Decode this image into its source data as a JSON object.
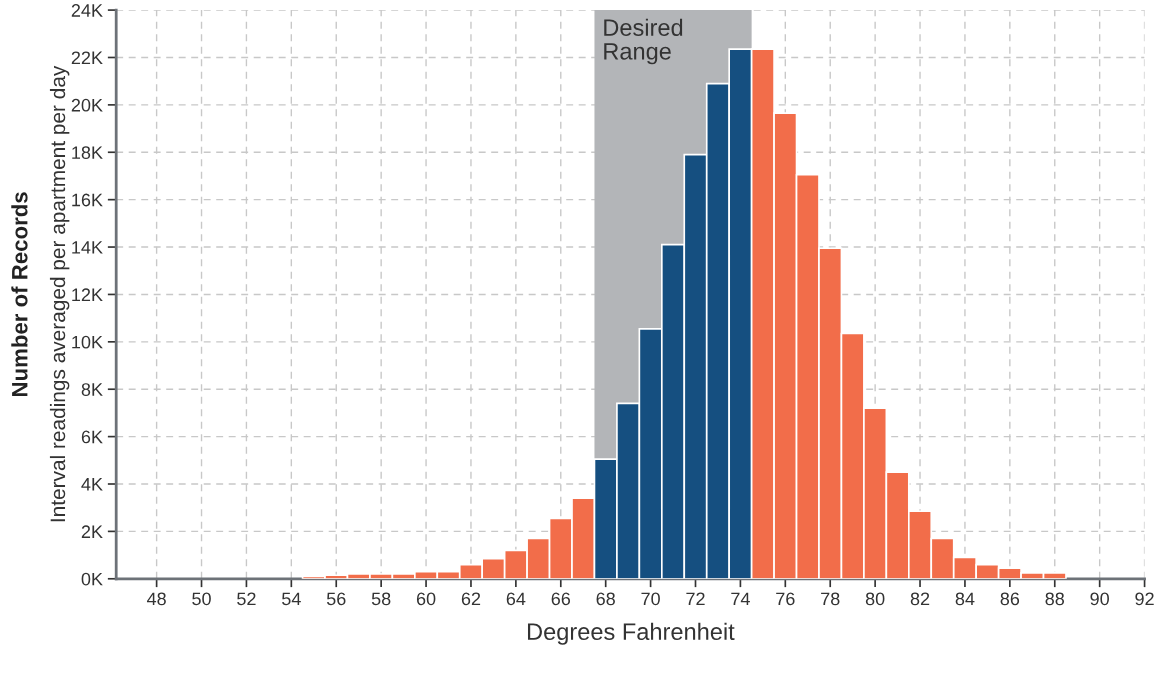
{
  "chart_data": {
    "type": "histogram",
    "xlabel": "Degrees Fahrenheit",
    "ylabel": "Number of Records",
    "annotations": [
      "Interval readings averaged per apartment per day"
    ],
    "bins": [
      54.5,
      55.5,
      56.5,
      57.5,
      58.5,
      59.5,
      60.5,
      61.5,
      62.5,
      63.5,
      64.5,
      65.5,
      66.5,
      67.5,
      68.5,
      69.5,
      70.5,
      71.5,
      72.5,
      73.5,
      74.5,
      75.5,
      76.5,
      77.5,
      78.5,
      79.5,
      80.5,
      81.5,
      82.5,
      83.5,
      84.5,
      85.5,
      86.5,
      87.5,
      88.5
    ],
    "values": [
      100,
      150,
      200,
      200,
      200,
      300,
      300,
      600,
      850,
      1200,
      1700,
      2550,
      3400,
      5050,
      7400,
      10550,
      14100,
      17900,
      20900,
      22350,
      22350,
      19650,
      17050,
      13950,
      10350,
      7200,
      4500,
      2850,
      1700,
      900,
      600,
      450,
      250,
      250
    ],
    "colors": [
      "#f26d4a",
      "#f26d4a",
      "#f26d4a",
      "#f26d4a",
      "#f26d4a",
      "#f26d4a",
      "#f26d4a",
      "#f26d4a",
      "#f26d4a",
      "#f26d4a",
      "#f26d4a",
      "#f26d4a",
      "#f26d4a",
      "#154f80",
      "#154f80",
      "#154f80",
      "#154f80",
      "#154f80",
      "#154f80",
      "#154f80",
      "#f26d4a",
      "#f26d4a",
      "#f26d4a",
      "#f26d4a",
      "#f26d4a",
      "#f26d4a",
      "#f26d4a",
      "#f26d4a",
      "#f26d4a",
      "#f26d4a",
      "#f26d4a",
      "#f26d4a",
      "#f26d4a",
      "#f26d4a"
    ],
    "bands": [
      {
        "axis": "x",
        "from": 67.5,
        "to": 74.5,
        "label": "Desired Range",
        "color": "#b3b5b8"
      }
    ],
    "xlim": [
      46.2,
      92
    ],
    "xticks": [
      48,
      50,
      52,
      54,
      56,
      58,
      60,
      62,
      64,
      66,
      68,
      70,
      72,
      74,
      76,
      78,
      80,
      82,
      84,
      86,
      88,
      90,
      92
    ],
    "ylim": [
      0,
      24000
    ],
    "yticks": [
      {
        "value": 0,
        "label": "0K"
      },
      {
        "value": 2000,
        "label": "2K"
      },
      {
        "value": 4000,
        "label": "4K"
      },
      {
        "value": 6000,
        "label": "6K"
      },
      {
        "value": 8000,
        "label": "8K"
      },
      {
        "value": 10000,
        "label": "10K"
      },
      {
        "value": 12000,
        "label": "12K"
      },
      {
        "value": 14000,
        "label": "14K"
      },
      {
        "value": 16000,
        "label": "16K"
      },
      {
        "value": 18000,
        "label": "18K"
      },
      {
        "value": 20000,
        "label": "20K"
      },
      {
        "value": 22000,
        "label": "22K"
      },
      {
        "value": 24000,
        "label": "24K"
      }
    ],
    "grid": true
  }
}
